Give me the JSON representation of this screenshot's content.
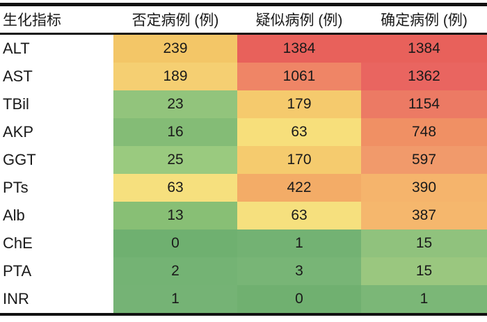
{
  "table": {
    "columns": [
      {
        "label": "生化指标"
      },
      {
        "label": "否定病例 (例)"
      },
      {
        "label": "疑似病例 (例)"
      },
      {
        "label": "确定病例 (例)"
      }
    ],
    "rows": [
      {
        "label": "ALT",
        "cells": [
          {
            "value": "239",
            "color": "#F3C667"
          },
          {
            "value": "1384",
            "color": "#E8615B"
          },
          {
            "value": "1384",
            "color": "#E8615B"
          }
        ]
      },
      {
        "label": "AST",
        "cells": [
          {
            "value": "189",
            "color": "#F5CF72"
          },
          {
            "value": "1061",
            "color": "#EF8566"
          },
          {
            "value": "1362",
            "color": "#E96560"
          }
        ]
      },
      {
        "label": "TBil",
        "cells": [
          {
            "value": "23",
            "color": "#92C47C"
          },
          {
            "value": "179",
            "color": "#F5CA6D"
          },
          {
            "value": "1154",
            "color": "#EC7A64"
          }
        ]
      },
      {
        "label": "AKP",
        "cells": [
          {
            "value": "16",
            "color": "#84BC76"
          },
          {
            "value": "63",
            "color": "#F7DF7B"
          },
          {
            "value": "748",
            "color": "#F09064"
          }
        ]
      },
      {
        "label": "GGT",
        "cells": [
          {
            "value": "25",
            "color": "#9ACA7F"
          },
          {
            "value": "170",
            "color": "#F5CB6E"
          },
          {
            "value": "597",
            "color": "#F19A6B"
          }
        ]
      },
      {
        "label": "PTs",
        "cells": [
          {
            "value": "63",
            "color": "#F6E07E"
          },
          {
            "value": "422",
            "color": "#F3AC67"
          },
          {
            "value": "390",
            "color": "#F5B46C"
          }
        ]
      },
      {
        "label": "Alb",
        "cells": [
          {
            "value": "13",
            "color": "#88BF75"
          },
          {
            "value": "63",
            "color": "#F6E07E"
          },
          {
            "value": "387",
            "color": "#F5B76D"
          }
        ]
      },
      {
        "label": "ChE",
        "cells": [
          {
            "value": "0",
            "color": "#6FB070"
          },
          {
            "value": "1",
            "color": "#73B273"
          },
          {
            "value": "15",
            "color": "#90C27D"
          }
        ]
      },
      {
        "label": "PTA",
        "cells": [
          {
            "value": "2",
            "color": "#74B374"
          },
          {
            "value": "3",
            "color": "#78B576"
          },
          {
            "value": "15",
            "color": "#9AC77F"
          }
        ]
      },
      {
        "label": "INR",
        "cells": [
          {
            "value": "1",
            "color": "#75B375"
          },
          {
            "value": "0",
            "color": "#70B070"
          },
          {
            "value": "1",
            "color": "#7BB777"
          }
        ]
      }
    ]
  },
  "colors": {
    "border": "#111111",
    "text": "#1A1A1A",
    "background": "#FFFFFF",
    "scale_low_green": "#6FB070",
    "scale_mid_yellow": "#F6E07E",
    "scale_high_red": "#E8615B"
  },
  "chart_data": {
    "type": "heatmap",
    "title": "",
    "row_labels": [
      "ALT",
      "AST",
      "TBil",
      "AKP",
      "GGT",
      "PTs",
      "Alb",
      "ChE",
      "PTA",
      "INR"
    ],
    "columns": [
      "否定病例 (例)",
      "疑似病例 (例)",
      "确定病例 (例)"
    ],
    "row_header": "生化指标",
    "values": [
      [
        239,
        1384,
        1384
      ],
      [
        189,
        1061,
        1362
      ],
      [
        23,
        179,
        1154
      ],
      [
        16,
        63,
        748
      ],
      [
        25,
        170,
        597
      ],
      [
        63,
        422,
        390
      ],
      [
        13,
        63,
        387
      ],
      [
        0,
        1,
        15
      ],
      [
        2,
        3,
        15
      ],
      [
        1,
        0,
        1
      ]
    ],
    "color_scale": "green (low) -> yellow (mid) -> red (high)",
    "legend_position": "none",
    "grid": false
  }
}
